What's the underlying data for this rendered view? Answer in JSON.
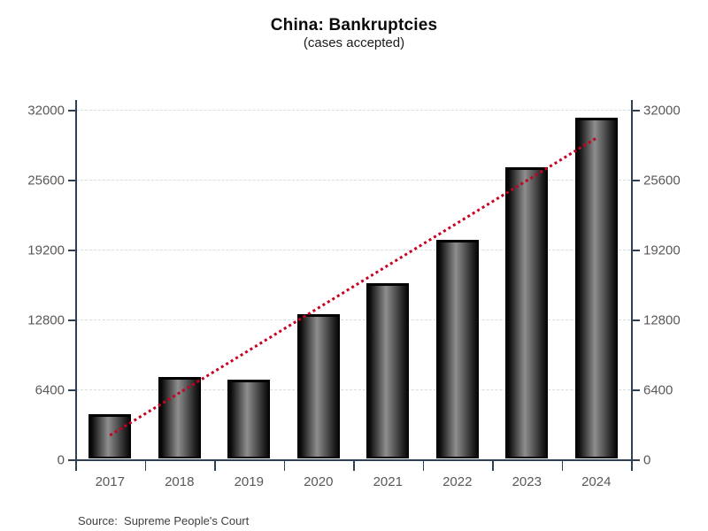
{
  "chart_data": {
    "type": "bar",
    "title": "China: Bankruptcies",
    "subtitle": "(cases accepted)",
    "categories": [
      "2017",
      "2018",
      "2019",
      "2020",
      "2021",
      "2022",
      "2023",
      "2024"
    ],
    "values": [
      4100,
      7500,
      7300,
      13300,
      16100,
      20100,
      26700,
      31300
    ],
    "xlabel": "",
    "ylabel": "",
    "ylim": [
      0,
      32000
    ],
    "y_ticks": [
      0,
      6400,
      12800,
      19200,
      25600,
      32000
    ],
    "y_axis_sides": "both",
    "grid": "horizontal-dashed",
    "legend": "none",
    "trend_line": {
      "type": "dotted-line",
      "color": "#c80021",
      "points": [
        {
          "category": "2017",
          "value": 2200
        },
        {
          "category": "2024",
          "value": 29400
        }
      ]
    },
    "source": "Source:  Supreme People's Court"
  },
  "colors": {
    "axis": "#2e4053",
    "tick_label": "#595959",
    "gridline": "#d8dde4",
    "trend": "#c80021",
    "bar_dark": "#000000",
    "bar_highlight": "#8e8e8e",
    "title": "#0a0a0a"
  }
}
